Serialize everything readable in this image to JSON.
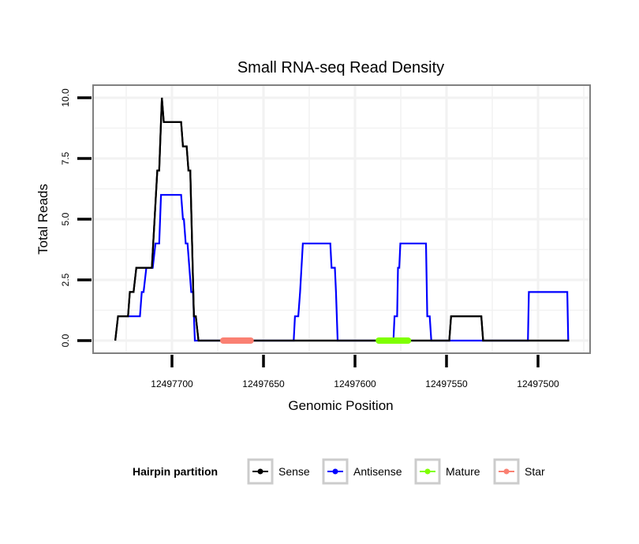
{
  "chart_data": {
    "type": "line",
    "title": "Small RNA-seq Read Density",
    "xlabel": "Genomic Position",
    "ylabel": "Total Reads",
    "x_reversed": true,
    "xlim": [
      12497733,
      12497475
    ],
    "ylim": [
      -0.5,
      10.5
    ],
    "grid": true,
    "x_ticks": [
      12497700,
      12497650,
      12497600,
      12497550,
      12497500
    ],
    "x_tick_labels": [
      "12497700",
      "12497650",
      "12497600",
      "12497550",
      "12497500"
    ],
    "y_ticks": [
      0,
      2.5,
      5,
      7.5,
      10
    ],
    "y_tick_labels": [
      "0.0",
      "2.5",
      "5.0",
      "7.5",
      "10.0"
    ],
    "legend": {
      "title": "Hairpin partition",
      "placement": "bottom",
      "entries": [
        {
          "name": "Sense",
          "color": "#000000"
        },
        {
          "name": "Antisense",
          "color": "#0000ff"
        },
        {
          "name": "Mature",
          "color": "#7fff00"
        },
        {
          "name": "Star",
          "color": "#fa8072"
        }
      ]
    },
    "series": [
      {
        "name": "Sense",
        "color": "#000000",
        "points": [
          [
            12497731,
            0
          ],
          [
            12497729.5,
            1
          ],
          [
            12497724,
            1
          ],
          [
            12497723,
            2
          ],
          [
            12497721,
            2
          ],
          [
            12497719.5,
            3
          ],
          [
            12497711,
            3
          ],
          [
            12497708,
            7
          ],
          [
            12497707,
            7
          ],
          [
            12497705.5,
            10
          ],
          [
            12497704.5,
            9
          ],
          [
            12497695,
            9
          ],
          [
            12497694,
            8
          ],
          [
            12497692,
            8
          ],
          [
            12497691,
            7
          ],
          [
            12497690,
            7
          ],
          [
            12497688,
            1
          ],
          [
            12497687,
            1
          ],
          [
            12497685.5,
            0
          ],
          [
            12497548.5,
            0
          ],
          [
            12497547.5,
            1
          ],
          [
            12497531,
            1
          ],
          [
            12497530,
            0
          ],
          [
            12497483,
            0
          ]
        ]
      },
      {
        "name": "Antisense",
        "color": "#0000ff",
        "points": [
          [
            12497724,
            1
          ],
          [
            12497717.5,
            1
          ],
          [
            12497716.5,
            2
          ],
          [
            12497715.5,
            2
          ],
          [
            12497714,
            3
          ],
          [
            12497710.5,
            3
          ],
          [
            12497709,
            4
          ],
          [
            12497707,
            4
          ],
          [
            12497706,
            6
          ],
          [
            12497695,
            6
          ],
          [
            12497694,
            5
          ],
          [
            12497693.5,
            5
          ],
          [
            12497692.5,
            4
          ],
          [
            12497691.5,
            4
          ],
          [
            12497689.5,
            2
          ],
          [
            12497688.5,
            2
          ],
          [
            12497687.5,
            0
          ],
          [
            12497633.5,
            0
          ],
          [
            12497632.8,
            1
          ],
          [
            12497631,
            1
          ],
          [
            12497630,
            2
          ],
          [
            12497628.5,
            4
          ],
          [
            12497613.5,
            4
          ],
          [
            12497612.8,
            3
          ],
          [
            12497611,
            3
          ],
          [
            12497610.4,
            2
          ],
          [
            12497609.5,
            0
          ],
          [
            12497579,
            0
          ],
          [
            12497578.4,
            1
          ],
          [
            12497577,
            1
          ],
          [
            12497576.5,
            3
          ],
          [
            12497575.8,
            3
          ],
          [
            12497575.2,
            4
          ],
          [
            12497561.2,
            4
          ],
          [
            12497560.5,
            1
          ],
          [
            12497559.2,
            1
          ],
          [
            12497558.3,
            0
          ],
          [
            12497548,
            0
          ],
          [
            12497531,
            0
          ],
          [
            12497505.5,
            0
          ],
          [
            12497505,
            2
          ],
          [
            12497484,
            2
          ],
          [
            12497483.5,
            0
          ]
        ]
      }
    ],
    "segments": [
      {
        "name": "Star",
        "color": "#fa8072",
        "start": 12497672,
        "end": 12497657,
        "y": 0
      },
      {
        "name": "Mature",
        "color": "#7fff00",
        "start": 12497587,
        "end": 12497571,
        "y": 0
      }
    ]
  }
}
